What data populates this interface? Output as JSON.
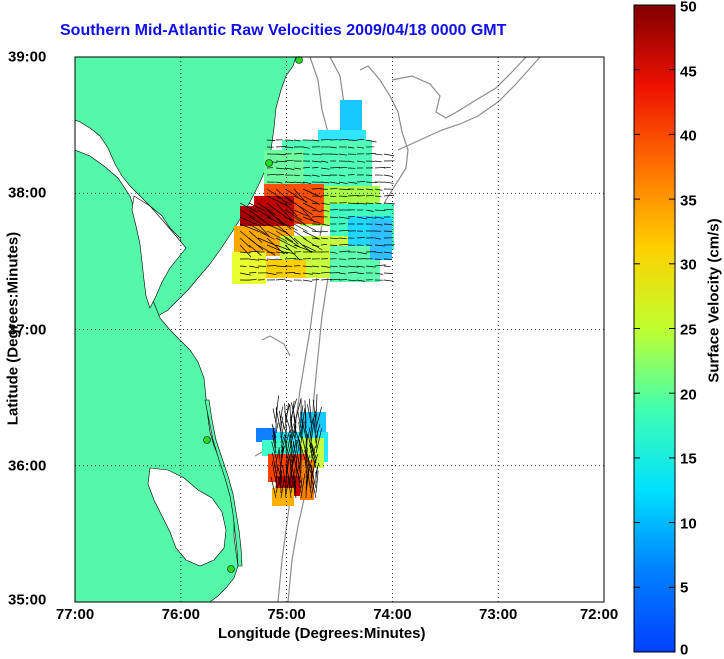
{
  "title": "Southern Mid-Atlantic Raw Velocities 2009/04/18 0000 GMT",
  "x_axis": {
    "label": "Longitude (Degrees:Minutes)",
    "ticks": [
      "77:00",
      "76:00",
      "75:00",
      "74:00",
      "73:00",
      "72:00"
    ]
  },
  "y_axis": {
    "label": "Latitude (Degrees:Minutes)",
    "ticks": [
      "39:00",
      "38:00",
      "37:00",
      "36:00",
      "35:00"
    ]
  },
  "colorbar": {
    "label": "Surface Velocity (cm/s)",
    "ticks": [
      "50",
      "45",
      "40",
      "35",
      "30",
      "25",
      "20",
      "15",
      "10",
      "5",
      "0"
    ],
    "min": 0,
    "max": 50
  },
  "map": {
    "lon_range": [
      -77,
      -72
    ],
    "lat_range": [
      35,
      39
    ],
    "grid": "dotted",
    "land_color": "#55f7a9",
    "water_color": "#ffffff",
    "contour_color": "#8c8c8c",
    "station_color": "#22dd22",
    "colormap": "jet"
  }
}
